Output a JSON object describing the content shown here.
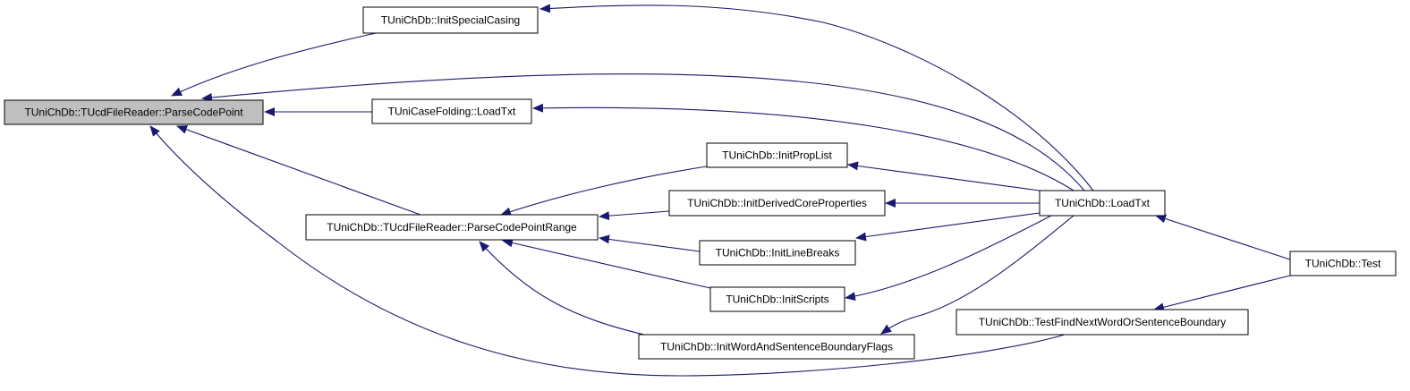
{
  "nodes": [
    {
      "label": "TUniChDb::TUcdFileReader::ParseCodePoint"
    },
    {
      "label": "TUniChDb::InitSpecialCasing"
    },
    {
      "label": "TUniCaseFolding::LoadTxt"
    },
    {
      "label": "TUniChDb::InitPropList"
    },
    {
      "label": "TUniChDb::InitDerivedCoreProperties"
    },
    {
      "label": "TUniChDb::TUcdFileReader::ParseCodePointRange"
    },
    {
      "label": "TUniChDb::InitLineBreaks"
    },
    {
      "label": "TUniChDb::InitScripts"
    },
    {
      "label": "TUniChDb::InitWordAndSentenceBoundaryFlags"
    },
    {
      "label": "TUniChDb::LoadTxt"
    },
    {
      "label": "TUniChDb::TestFindNextWordOrSentenceBoundary"
    },
    {
      "label": "TUniChDb::Test"
    }
  ]
}
